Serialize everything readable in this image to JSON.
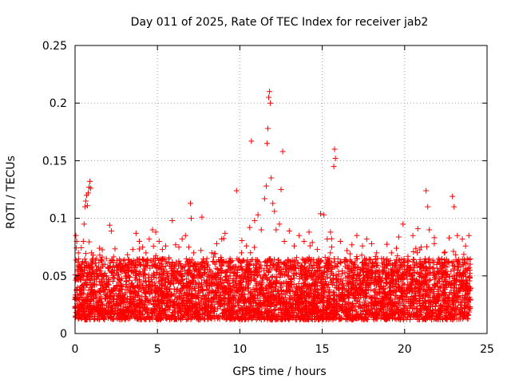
{
  "chart_data": {
    "type": "scatter",
    "title": "Day 011 of 2025, Rate Of TEC Index for receiver jab2",
    "xlabel": "GPS time / hours",
    "ylabel": "ROTI / TECUs",
    "xlim": [
      0,
      25
    ],
    "ylim": [
      0,
      0.25
    ],
    "xticks": [
      0,
      5,
      10,
      15,
      20,
      25
    ],
    "xtick_labels": [
      "0",
      "5",
      "10",
      "15",
      "20",
      "25"
    ],
    "yticks": [
      0,
      0.05,
      0.1,
      0.15,
      0.2,
      0.25
    ],
    "ytick_labels": [
      "0",
      "0.05",
      "0.1",
      "0.15",
      "0.2",
      "0.25"
    ],
    "grid": true,
    "marker": "+",
    "color": "#ff0000",
    "series": [
      {
        "points": [
          [
            0.0,
            0.022
          ],
          [
            0.05,
            0.085
          ],
          [
            0.1,
            0.08
          ],
          [
            0.15,
            0.062
          ],
          [
            0.2,
            0.07
          ],
          [
            0.3,
            0.05
          ],
          [
            0.4,
            0.057
          ],
          [
            0.5,
            0.08
          ],
          [
            0.55,
            0.095
          ],
          [
            0.6,
            0.11
          ],
          [
            0.65,
            0.115
          ],
          [
            0.7,
            0.12
          ],
          [
            0.75,
            0.111
          ],
          [
            0.8,
            0.122
          ],
          [
            0.85,
            0.127
          ],
          [
            0.9,
            0.132
          ],
          [
            0.95,
            0.126
          ],
          [
            1.0,
            0.07
          ],
          [
            1.1,
            0.068
          ],
          [
            1.3,
            0.065
          ],
          [
            1.5,
            0.068
          ],
          [
            1.7,
            0.06
          ],
          [
            1.9,
            0.065
          ],
          [
            2.1,
            0.094
          ],
          [
            2.2,
            0.089
          ],
          [
            2.4,
            0.055
          ],
          [
            2.7,
            0.06
          ],
          [
            3.0,
            0.064
          ],
          [
            3.3,
            0.058
          ],
          [
            3.5,
            0.073
          ],
          [
            3.7,
            0.087
          ],
          [
            3.9,
            0.08
          ],
          [
            4.1,
            0.075
          ],
          [
            4.3,
            0.07
          ],
          [
            4.5,
            0.082
          ],
          [
            4.7,
            0.09
          ],
          [
            4.9,
            0.088
          ],
          [
            5.1,
            0.08
          ],
          [
            5.3,
            0.073
          ],
          [
            5.5,
            0.076
          ],
          [
            5.7,
            0.066
          ],
          [
            5.9,
            0.098
          ],
          [
            6.1,
            0.077
          ],
          [
            6.3,
            0.075
          ],
          [
            6.5,
            0.082
          ],
          [
            6.7,
            0.085
          ],
          [
            6.9,
            0.075
          ],
          [
            7.0,
            0.113
          ],
          [
            7.05,
            0.1
          ],
          [
            7.2,
            0.07
          ],
          [
            7.4,
            0.06
          ],
          [
            7.7,
            0.101
          ],
          [
            8.0,
            0.065
          ],
          [
            8.3,
            0.07
          ],
          [
            8.6,
            0.078
          ],
          [
            8.9,
            0.082
          ],
          [
            9.1,
            0.087
          ],
          [
            9.4,
            0.065
          ],
          [
            9.7,
            0.058
          ],
          [
            9.8,
            0.124
          ],
          [
            10.1,
            0.07
          ],
          [
            10.4,
            0.076
          ],
          [
            10.6,
            0.092
          ],
          [
            10.7,
            0.167
          ],
          [
            10.9,
            0.098
          ],
          [
            11.1,
            0.103
          ],
          [
            11.3,
            0.09
          ],
          [
            11.5,
            0.117
          ],
          [
            11.6,
            0.128
          ],
          [
            11.65,
            0.165
          ],
          [
            11.7,
            0.178
          ],
          [
            11.75,
            0.205
          ],
          [
            11.8,
            0.21
          ],
          [
            11.85,
            0.2
          ],
          [
            11.9,
            0.135
          ],
          [
            12.0,
            0.113
          ],
          [
            12.1,
            0.106
          ],
          [
            12.2,
            0.09
          ],
          [
            12.4,
            0.095
          ],
          [
            12.5,
            0.125
          ],
          [
            12.6,
            0.158
          ],
          [
            12.7,
            0.08
          ],
          [
            13.0,
            0.089
          ],
          [
            13.3,
            0.076
          ],
          [
            13.6,
            0.085
          ],
          [
            13.9,
            0.08
          ],
          [
            14.2,
            0.088
          ],
          [
            14.4,
            0.079
          ],
          [
            14.7,
            0.073
          ],
          [
            14.9,
            0.104
          ],
          [
            15.1,
            0.103
          ],
          [
            15.3,
            0.082
          ],
          [
            15.5,
            0.088
          ],
          [
            15.7,
            0.145
          ],
          [
            15.75,
            0.16
          ],
          [
            15.8,
            0.152
          ],
          [
            16.1,
            0.08
          ],
          [
            16.5,
            0.072
          ],
          [
            16.8,
            0.077
          ],
          [
            17.1,
            0.085
          ],
          [
            17.4,
            0.068
          ],
          [
            17.7,
            0.082
          ],
          [
            18.0,
            0.078
          ],
          [
            18.3,
            0.07
          ],
          [
            18.6,
            0.065
          ],
          [
            18.9,
            0.06
          ],
          [
            19.2,
            0.07
          ],
          [
            19.5,
            0.074
          ],
          [
            19.9,
            0.095
          ],
          [
            20.2,
            0.067
          ],
          [
            20.5,
            0.085
          ],
          [
            20.8,
            0.091
          ],
          [
            21.0,
            0.075
          ],
          [
            21.3,
            0.124
          ],
          [
            21.4,
            0.11
          ],
          [
            21.5,
            0.09
          ],
          [
            21.8,
            0.078
          ],
          [
            22.1,
            0.064
          ],
          [
            22.4,
            0.07
          ],
          [
            22.7,
            0.083
          ],
          [
            22.9,
            0.119
          ],
          [
            23.0,
            0.11
          ],
          [
            23.2,
            0.085
          ],
          [
            23.5,
            0.082
          ],
          [
            23.7,
            0.076
          ],
          [
            23.9,
            0.085
          ]
        ]
      }
    ],
    "dense_band": {
      "x_range": [
        0,
        24
      ],
      "typical_low": 0.012,
      "typical_high": 0.065
    }
  }
}
